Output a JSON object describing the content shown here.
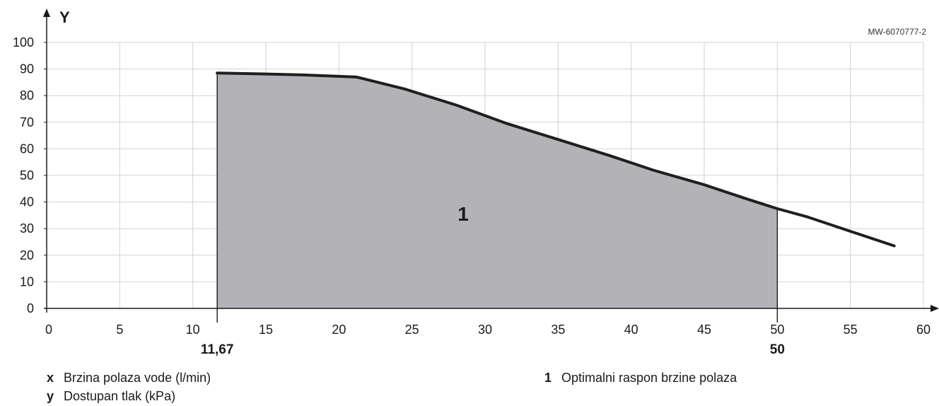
{
  "chart_data": {
    "type": "area",
    "y_axis_name": "Y",
    "reference_code": "MW-6070777-2",
    "xlim": [
      0,
      60
    ],
    "ylim": [
      0,
      100
    ],
    "x_ticks": [
      0,
      5,
      10,
      15,
      20,
      25,
      30,
      35,
      40,
      45,
      50,
      55,
      60
    ],
    "y_ticks": [
      0,
      10,
      20,
      30,
      40,
      50,
      60,
      70,
      80,
      90,
      100
    ],
    "x_tick_labels": [
      "0",
      "5",
      "10",
      "15",
      "20",
      "25",
      "30",
      "35",
      "40",
      "45",
      "50",
      "55",
      "60"
    ],
    "y_tick_labels": [
      "0",
      "10",
      "20",
      "30",
      "40",
      "50",
      "60",
      "70",
      "80",
      "90",
      "100"
    ],
    "grid": true,
    "series": [
      {
        "x": [
          11.67,
          14.5,
          17.5,
          21.2,
          24.5,
          28,
          31.5,
          35,
          38.5,
          41.5,
          45,
          48,
          50,
          52,
          55,
          58
        ],
        "y": [
          88.5,
          88.2,
          87.8,
          87.0,
          82.5,
          76.5,
          69.5,
          63.5,
          57.5,
          52.0,
          46.5,
          41.0,
          37.5,
          34.5,
          29.0,
          23.5
        ]
      }
    ],
    "shaded_region": {
      "x_start": 11.67,
      "x_end": 50,
      "label": "1",
      "color": "#b3b3b7"
    },
    "marked_x": [
      {
        "value": 11.67,
        "label": "11,67"
      },
      {
        "value": 50,
        "label": "50"
      }
    ],
    "legend": [
      {
        "key": "x",
        "text": "Brzina polaza vode (l/min)"
      },
      {
        "key": "y",
        "text": "Dostupan tlak (kPa)"
      },
      {
        "key": "1",
        "text": "Optimalni raspon brzine polaza"
      }
    ]
  }
}
